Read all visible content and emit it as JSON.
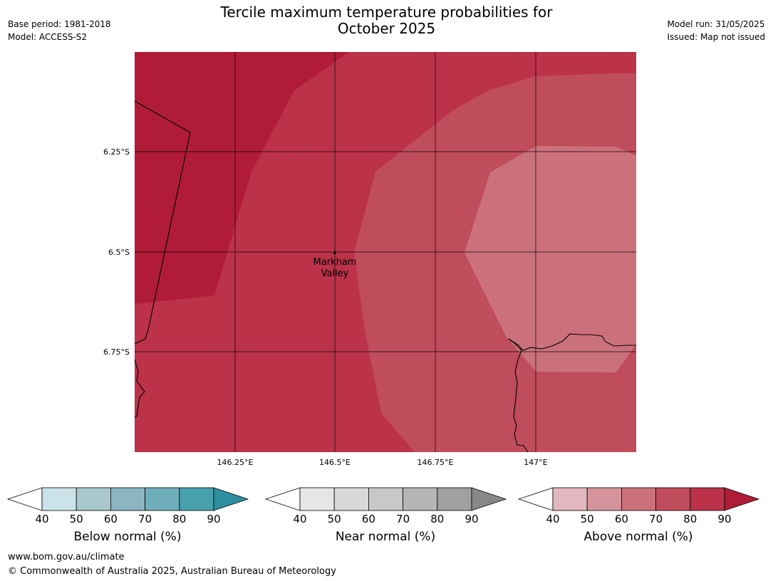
{
  "title": {
    "line1": "Tercile maximum temperature probabilities for",
    "line2": "October 2025"
  },
  "meta": {
    "base_period": "Base period: 1981-2018",
    "model": "Model: ACCESS-S2",
    "model_run": "Model run: 31/05/2025",
    "issued": "Issued: Map not issued"
  },
  "map": {
    "lat_ticks": [
      "6.25°S",
      "6.5°S",
      "6.75°S"
    ],
    "lon_ticks": [
      "146.25°E",
      "146.5°E",
      "146.75°E",
      "147°E"
    ],
    "place": {
      "line1": "Markham",
      "line2": "Valley"
    }
  },
  "colorbars": [
    {
      "label": "Below normal (%)",
      "ticks": [
        "40",
        "50",
        "60",
        "70",
        "80",
        "90"
      ],
      "colors": [
        "#ffffff",
        "#cbe3e8",
        "#a8c8cd",
        "#8ab5c1",
        "#6eaebb",
        "#48a0ae",
        "#2e8fa0"
      ]
    },
    {
      "label": "Near normal (%)",
      "ticks": [
        "40",
        "50",
        "60",
        "70",
        "80",
        "90"
      ],
      "colors": [
        "#ffffff",
        "#e6e6e6",
        "#d8d8d8",
        "#c8c8c8",
        "#b5b5b5",
        "#a0a0a0",
        "#888888"
      ]
    },
    {
      "label": "Above normal (%)",
      "ticks": [
        "40",
        "50",
        "60",
        "70",
        "80",
        "90"
      ],
      "colors": [
        "#ffffff",
        "#e2b7bd",
        "#d6949d",
        "#cb717c",
        "#c04d5b",
        "#bb3249",
        "#b01c38"
      ]
    }
  ],
  "footer": {
    "url": "www.bom.gov.au/climate",
    "copyright": "© Commonwealth of Australia 2025, Australian Bureau of Meteorology"
  },
  "colors": {
    "cat_90": "#b01c38",
    "cat_80": "#bb3249",
    "cat_70": "#c04d5b",
    "cat_60": "#cb717c"
  }
}
